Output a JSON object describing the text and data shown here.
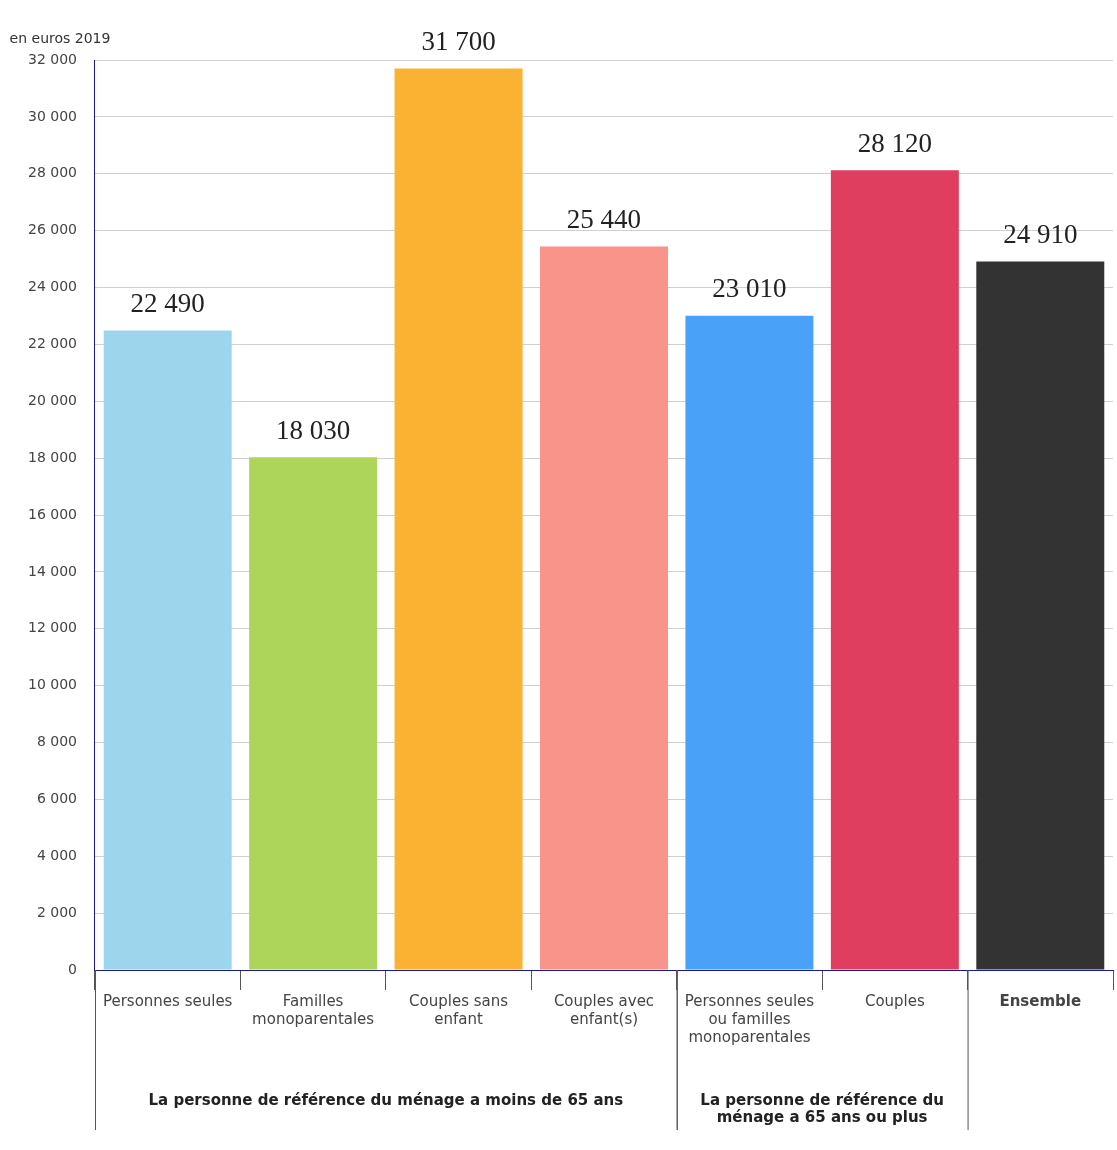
{
  "chart_data": {
    "type": "bar",
    "ylabel": "en euros 2019",
    "categories": [
      "Personnes seules",
      "Familles monoparentales",
      "Couples sans enfant",
      "Couples avec enfant(s)",
      "Personnes seules ou familles monoparentales",
      "Couples",
      "Ensemble"
    ],
    "values": [
      22490,
      18030,
      31700,
      25440,
      23010,
      28120,
      24910
    ],
    "colors": [
      "#9dd5ec",
      "#add55a",
      "#fbb131",
      "#f89489",
      "#4aa2f8",
      "#df3e5e",
      "#333333"
    ],
    "value_labels": [
      "22 490",
      "18 030",
      "31 700",
      "25 440",
      "23 010",
      "28 120",
      "24 910"
    ],
    "ylim": [
      0,
      32000
    ],
    "yticks": [
      {
        "value": 0,
        "label": "0"
      },
      {
        "value": 2000,
        "label": "2 000"
      },
      {
        "value": 4000,
        "label": "4 000"
      },
      {
        "value": 6000,
        "label": "6 000"
      },
      {
        "value": 8000,
        "label": "8 000"
      },
      {
        "value": 10000,
        "label": "10 000"
      },
      {
        "value": 12000,
        "label": "12 000"
      },
      {
        "value": 14000,
        "label": "14 000"
      },
      {
        "value": 16000,
        "label": "16 000"
      },
      {
        "value": 18000,
        "label": "18 000"
      },
      {
        "value": 20000,
        "label": "20 000"
      },
      {
        "value": 22000,
        "label": "22 000"
      },
      {
        "value": 24000,
        "label": "24 000"
      },
      {
        "value": 26000,
        "label": "26 000"
      },
      {
        "value": 28000,
        "label": "28 000"
      },
      {
        "value": 30000,
        "label": "30 000"
      },
      {
        "value": 32000,
        "label": "32 000"
      }
    ],
    "annotations": [
      "La personne de référence du ménage a moins de 65 ans",
      "La personne de référence du ménage a 65 ans ou plus"
    ],
    "grid": "y",
    "legend": false
  }
}
